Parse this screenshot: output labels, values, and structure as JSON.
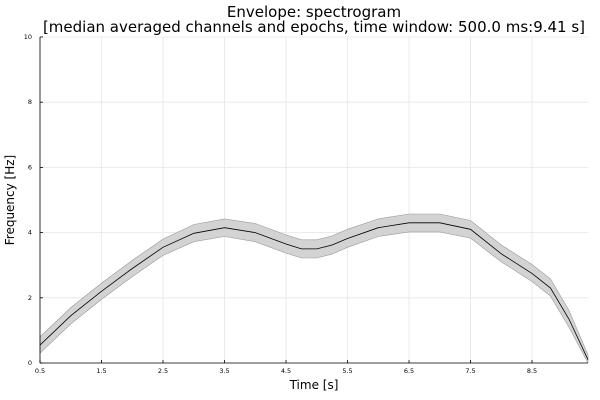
{
  "chart_data": {
    "type": "line",
    "title": "Envelope: spectrogram",
    "subtitle": "[median averaged channels and epochs, time window: 500.0 ms:9.41 s]",
    "xlabel": "Time [s]",
    "ylabel": "Frequency [Hz]",
    "xlim": [
      0.5,
      9.41
    ],
    "ylim": [
      0,
      10
    ],
    "x_ticks": [
      0.5,
      1.5,
      2.5,
      3.5,
      4.5,
      5.5,
      6.5,
      7.5,
      8.5
    ],
    "x_tick_labels": [
      "0.5",
      "1.5",
      "2.5",
      "3.5",
      "4.5",
      "5.5",
      "6.5",
      "7.5",
      "8.5"
    ],
    "y_ticks": [
      0,
      2,
      4,
      6,
      8,
      10
    ],
    "y_tick_labels": [
      "0",
      "2",
      "4",
      "6",
      "8",
      "10"
    ],
    "grid": true,
    "legend": "none",
    "band_color": "#d3d3d3",
    "line_color": "#000000",
    "series": [
      {
        "x": [
          0.5,
          1.0,
          1.5,
          2.0,
          2.5,
          3.0,
          3.5,
          4.0,
          4.5,
          4.75,
          5.0,
          5.25,
          5.5,
          6.0,
          6.5,
          7.0,
          7.5,
          8.0,
          8.5,
          8.8,
          9.1,
          9.41
        ],
        "y": [
          0.55,
          1.45,
          2.2,
          2.9,
          3.55,
          3.98,
          4.15,
          4.0,
          3.65,
          3.5,
          3.5,
          3.62,
          3.82,
          4.15,
          4.3,
          4.3,
          4.1,
          3.35,
          2.75,
          2.3,
          1.35,
          0.1
        ],
        "lower": [
          0.3,
          1.2,
          1.95,
          2.65,
          3.3,
          3.72,
          3.88,
          3.72,
          3.37,
          3.22,
          3.22,
          3.34,
          3.55,
          3.88,
          4.02,
          4.02,
          3.83,
          3.1,
          2.5,
          2.05,
          1.1,
          0.0
        ],
        "upper": [
          0.8,
          1.7,
          2.45,
          3.15,
          3.8,
          4.25,
          4.42,
          4.28,
          3.93,
          3.78,
          3.78,
          3.9,
          4.1,
          4.42,
          4.57,
          4.57,
          4.37,
          3.62,
          3.02,
          2.58,
          1.62,
          0.25
        ]
      }
    ]
  }
}
